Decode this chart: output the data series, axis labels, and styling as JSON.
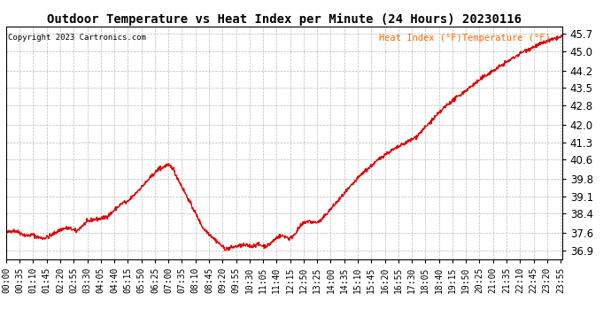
{
  "title": "Outdoor Temperature vs Heat Index per Minute (24 Hours) 20230116",
  "copyright": "Copyright 2023 Cartronics.com",
  "legend_heat": "Heat Index (°F)",
  "legend_temp": "Temperature (°F)",
  "ylim": [
    36.55,
    46.0
  ],
  "yticks": [
    36.9,
    37.6,
    38.4,
    39.1,
    39.8,
    40.6,
    41.3,
    42.0,
    42.8,
    43.5,
    44.2,
    45.0,
    45.7
  ],
  "line_color": "#dd0000",
  "legend_color": "#ff6600",
  "grid_color": "#bbbbbb",
  "x_tick_interval_minutes": 35,
  "total_minutes": 1440,
  "figsize": [
    6.9,
    3.75
  ],
  "dpi": 100
}
